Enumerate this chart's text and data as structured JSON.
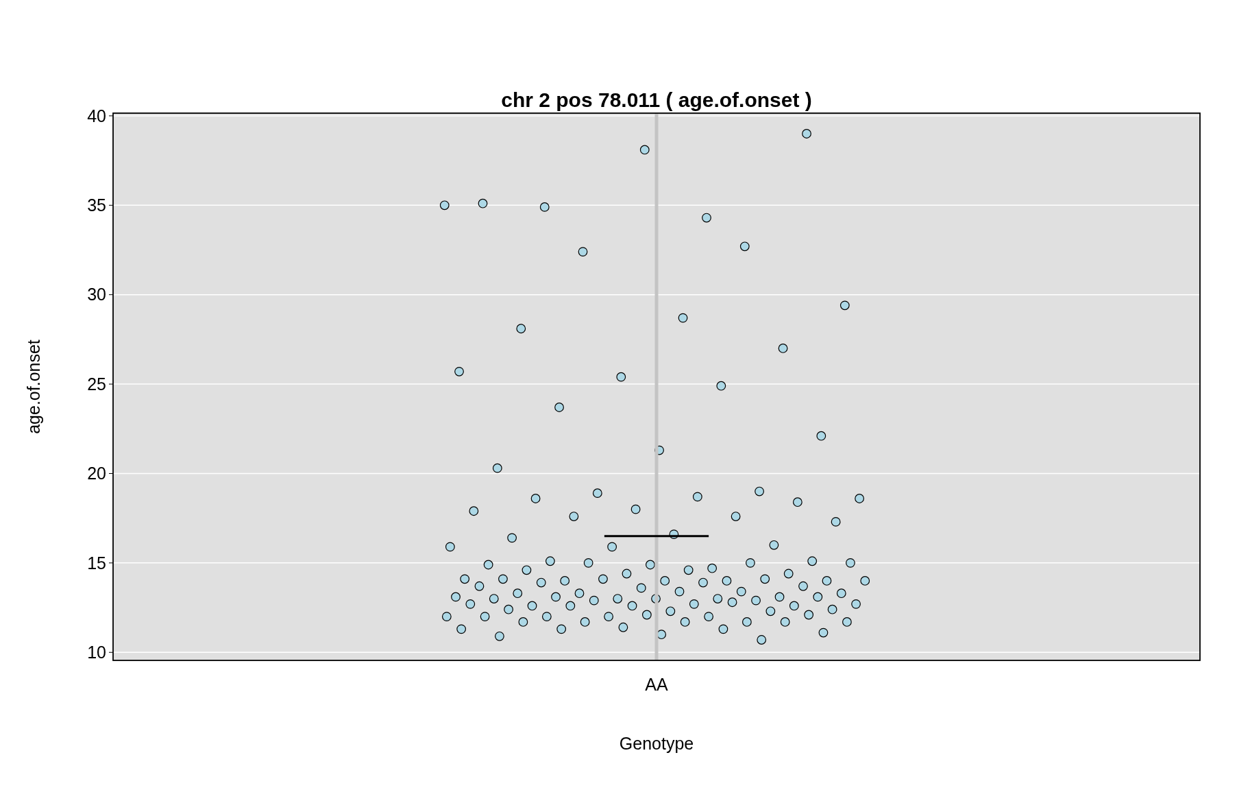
{
  "chart_data": {
    "type": "scatter",
    "title": "chr 2 pos 78.011 ( age.of.onset )",
    "xlabel": "Genotype",
    "ylabel": "age.of.onset",
    "categories": [
      "AA"
    ],
    "ylim": [
      9.55,
      40.15
    ],
    "yticks": [
      10,
      15,
      20,
      25,
      30,
      35,
      40
    ],
    "grid": "y",
    "marker": "circle",
    "ref_lines": [
      {
        "axis": "x",
        "value": "AA",
        "color": "#c4c4c4"
      },
      {
        "axis": "y",
        "value": 16.5,
        "color": "#000000"
      }
    ],
    "series": [
      {
        "type": "scatter",
        "color": "#add8e6",
        "x": [
          "AA",
          "AA",
          "AA",
          "AA",
          "AA",
          "AA",
          "AA",
          "AA",
          "AA",
          "AA",
          "AA",
          "AA",
          "AA",
          "AA",
          "AA",
          "AA",
          "AA",
          "AA",
          "AA",
          "AA",
          "AA",
          "AA",
          "AA",
          "AA",
          "AA",
          "AA",
          "AA",
          "AA",
          "AA",
          "AA",
          "AA",
          "AA",
          "AA",
          "AA",
          "AA",
          "AA",
          "AA",
          "AA",
          "AA",
          "AA",
          "AA",
          "AA",
          "AA",
          "AA",
          "AA",
          "AA",
          "AA",
          "AA",
          "AA",
          "AA",
          "AA",
          "AA",
          "AA",
          "AA",
          "AA",
          "AA",
          "AA",
          "AA",
          "AA",
          "AA",
          "AA",
          "AA",
          "AA",
          "AA",
          "AA",
          "AA",
          "AA",
          "AA",
          "AA",
          "AA",
          "AA",
          "AA",
          "AA",
          "AA",
          "AA",
          "AA",
          "AA",
          "AA",
          "AA",
          "AA",
          "AA",
          "AA",
          "AA",
          "AA",
          "AA",
          "AA",
          "AA",
          "AA",
          "AA",
          "AA",
          "AA",
          "AA",
          "AA",
          "AA",
          "AA",
          "AA",
          "AA",
          "AA",
          "AA",
          "AA",
          "AA",
          "AA",
          "AA",
          "AA",
          "AA",
          "AA",
          "AA",
          "AA",
          "AA"
        ],
        "values": [
          35,
          34.3,
          34.9,
          39,
          38.1,
          35.1,
          32.7,
          32.4,
          29.4,
          28.7,
          28.1,
          27,
          25.4,
          25.7,
          24.9,
          23.7,
          22.1,
          21.3,
          20.3,
          19,
          18.9,
          18.6,
          18.7,
          18.6,
          18.4,
          18,
          17.9,
          17.6,
          17.6,
          17.3,
          16.6,
          16.4,
          16,
          15.9,
          15.9,
          14.7,
          15.1,
          15.1,
          14.9,
          14.9,
          15,
          15,
          15,
          14.6,
          14.6,
          14.4,
          14.4,
          14.1,
          14,
          14,
          14,
          14,
          14.1,
          14.1,
          14.1,
          14,
          13.9,
          13.9,
          13.7,
          13.6,
          13.7,
          13.4,
          13.3,
          13.3,
          13.4,
          13.3,
          13.1,
          13,
          13.1,
          13,
          13.1,
          13.1,
          13,
          13,
          12.9,
          12.9,
          12.7,
          12.7,
          12.6,
          12.6,
          12.6,
          12.7,
          12.8,
          12.6,
          12.4,
          12.3,
          12.4,
          12.3,
          12,
          12,
          12,
          12,
          12.1,
          12.1,
          12,
          11.7,
          11.7,
          11.7,
          11.7,
          11.7,
          11.7,
          11.4,
          11.3,
          11.3,
          11.3,
          11.1,
          11,
          10.9,
          10.7
        ]
      }
    ]
  }
}
